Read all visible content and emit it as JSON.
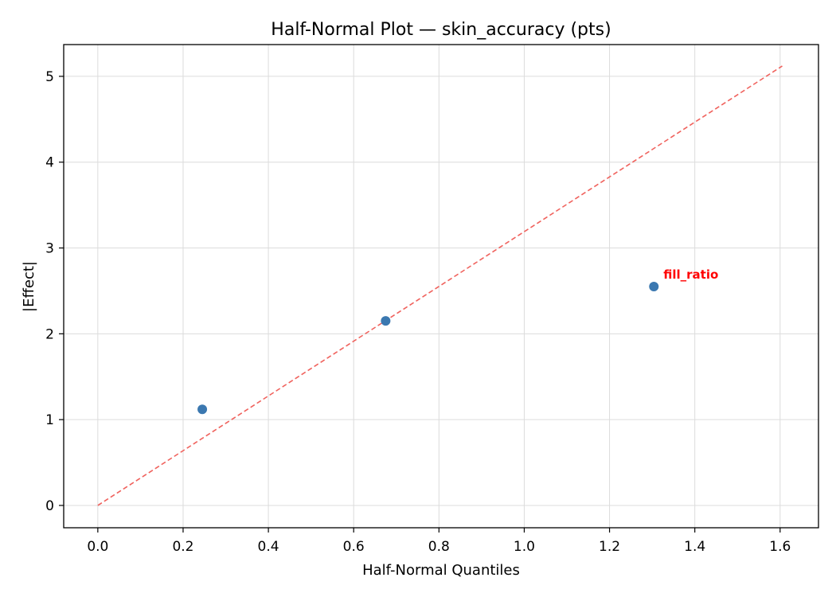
{
  "chart_data": {
    "type": "scatter",
    "title": "Half-Normal Plot — skin_accuracy (pts)",
    "xlabel": "Half-Normal Quantiles",
    "ylabel": "|Effect|",
    "xlim": [
      -0.08,
      1.69
    ],
    "ylim": [
      -0.26,
      5.37
    ],
    "xticks": [
      0.0,
      0.2,
      0.4,
      0.6,
      0.8,
      1.0,
      1.2,
      1.4,
      1.6
    ],
    "xtick_labels": [
      "0.0",
      "0.2",
      "0.4",
      "0.6",
      "0.8",
      "1.0",
      "1.2",
      "1.4",
      "1.6"
    ],
    "yticks": [
      0,
      1,
      2,
      3,
      4,
      5
    ],
    "ytick_labels": [
      "0",
      "1",
      "2",
      "3",
      "4",
      "5"
    ],
    "grid": true,
    "series": [
      {
        "x": [
          0.245,
          0.675,
          1.304
        ],
        "y": [
          1.12,
          2.15,
          2.55
        ],
        "color": "#3b78b0"
      }
    ],
    "reference_line": {
      "x": [
        0.0,
        1.605
      ],
      "y": [
        0.0,
        5.12
      ],
      "color": "#f0625d",
      "style": "dashed"
    },
    "annotations": [
      {
        "text": "fill_ratio",
        "x": 1.304,
        "y": 2.55,
        "color": "#ff0000"
      }
    ]
  }
}
